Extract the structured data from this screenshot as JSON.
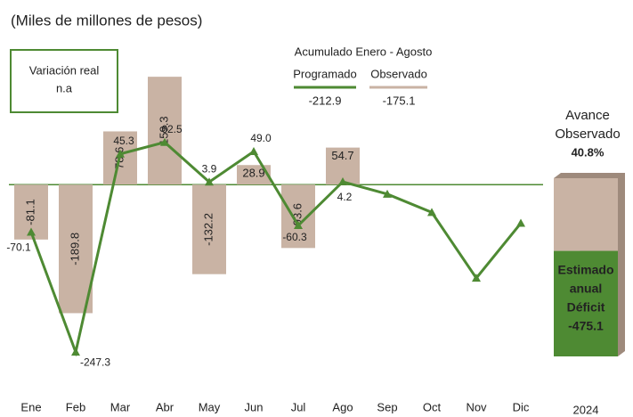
{
  "chart_data": {
    "type": "bar-line",
    "subtitle": "(Miles de millones de pesos)",
    "categories": [
      "Ene",
      "Feb",
      "Mar",
      "Abr",
      "May",
      "Jun",
      "Jul",
      "Ago",
      "Sep",
      "Oct",
      "Nov",
      "Dic"
    ],
    "ylim": [
      -280,
      220
    ],
    "series": [
      {
        "name": "Observado",
        "color": "#c9b3a4",
        "kind": "bar",
        "values": [
          -81.1,
          -189.8,
          78.6,
          159.3,
          -132.2,
          28.9,
          -93.6,
          54.7,
          null,
          null,
          null,
          null
        ]
      },
      {
        "name": "Programado",
        "color": "#4e8a33",
        "kind": "line",
        "values": [
          -70.1,
          -247.3,
          45.3,
          62.5,
          3.9,
          49.0,
          -60.3,
          4.2,
          -14,
          -41,
          -138,
          -57
        ],
        "value_labels": [
          "-70.1",
          "-247.3",
          "45.3",
          "62.5",
          "3.9",
          "49.0",
          "-60.3",
          "4.2",
          null,
          null,
          null,
          null
        ]
      }
    ],
    "variation_box": [
      "Variación real",
      "n.a"
    ],
    "accumulated": {
      "title": "Acumulado Enero - Agosto",
      "programado": -212.9,
      "observado": -175.1
    },
    "summary": {
      "avance_lines": [
        "Avance",
        "Observado"
      ],
      "avance": {
        "value": 40.8,
        "label": "40.8%"
      },
      "estimate_lines": [
        "Estimado",
        "anual",
        "Déficit"
      ],
      "estimate": -475.1,
      "year": "2024"
    }
  }
}
